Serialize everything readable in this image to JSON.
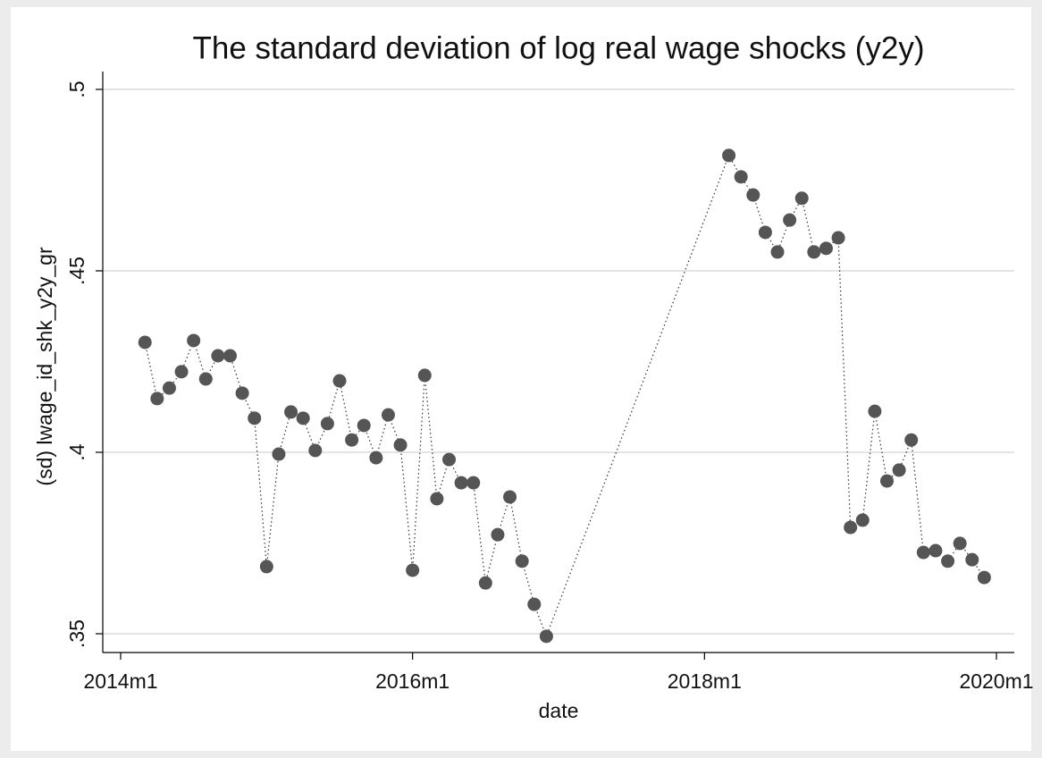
{
  "chart_data": {
    "type": "line",
    "title": "The standard deviation of log real wage shocks (y2y)",
    "xlabel": "date",
    "ylabel": "(sd) lwage_id_shk_y2y_gr",
    "x": [
      "2014m3",
      "2014m4",
      "2014m5",
      "2014m6",
      "2014m7",
      "2014m8",
      "2014m9",
      "2014m10",
      "2014m11",
      "2014m12",
      "2015m1",
      "2015m2",
      "2015m3",
      "2015m4",
      "2015m5",
      "2015m6",
      "2015m7",
      "2015m8",
      "2015m9",
      "2015m10",
      "2015m11",
      "2015m12",
      "2016m1",
      "2016m2",
      "2016m3",
      "2016m4",
      "2016m5",
      "2016m6",
      "2016m7",
      "2016m8",
      "2016m9",
      "2016m10",
      "2016m11",
      "2016m12",
      "2018m3",
      "2018m4",
      "2018m5",
      "2018m6",
      "2018m7",
      "2018m8",
      "2018m9",
      "2018m10",
      "2018m11",
      "2018m12",
      "2019m1",
      "2019m2",
      "2019m3",
      "2019m4",
      "2019m5",
      "2019m6",
      "2019m7",
      "2019m8",
      "2019m9",
      "2019m10",
      "2019m11",
      "2019m12"
    ],
    "series": [
      {
        "name": "(sd) lwage_id_shk_y2y_gr",
        "color": "#555555",
        "values": [
          0.4303,
          0.4148,
          0.4177,
          0.4222,
          0.4308,
          0.4202,
          0.4266,
          0.4266,
          0.4163,
          0.4094,
          0.3685,
          0.3995,
          0.4111,
          0.4094,
          0.4005,
          0.4079,
          0.4197,
          0.4034,
          0.4074,
          0.3985,
          0.4103,
          0.402,
          0.3675,
          0.4212,
          0.3872,
          0.398,
          0.3916,
          0.3916,
          0.364,
          0.3773,
          0.3877,
          0.37,
          0.3581,
          0.3493,
          0.4818,
          0.4759,
          0.4709,
          0.4606,
          0.4552,
          0.464,
          0.47,
          0.4552,
          0.4562,
          0.4591,
          0.3793,
          0.3813,
          0.4113,
          0.3921,
          0.3951,
          0.4034,
          0.3724,
          0.3729,
          0.37,
          0.3749,
          0.3704,
          0.3655
        ]
      }
    ],
    "xlim": [
      "2014m1",
      "2020m1"
    ],
    "xticks": [
      "2014m1",
      "2016m1",
      "2018m1",
      "2020m1"
    ],
    "ylim": [
      0.35,
      0.5
    ],
    "yticks": [
      {
        "value": 0.35,
        "label": ".35"
      },
      {
        "value": 0.4,
        "label": ".4"
      },
      {
        "value": 0.45,
        "label": ".45"
      },
      {
        "value": 0.5,
        "label": ".5"
      }
    ],
    "grid": true
  }
}
